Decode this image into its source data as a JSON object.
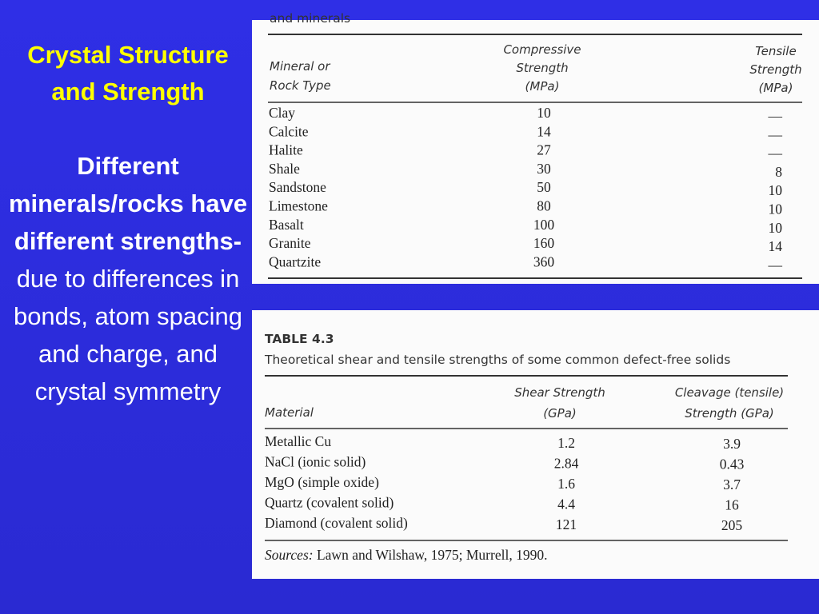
{
  "slide": {
    "title": "Crystal Structure and Strength",
    "body_bold": "Different minerals/rocks have different strengths-",
    "body_rest": " due to differences in bonds, atom spacing and charge, and crystal symmetry"
  },
  "table1": {
    "caption_fragment": "and minerals",
    "headers": [
      [
        "Mineral or",
        "Rock Type"
      ],
      [
        "Compressive",
        "Strength",
        "(MPa)"
      ],
      [
        "Tensile",
        "Strength",
        "(MPa)"
      ]
    ],
    "rows": [
      [
        "Clay",
        "10",
        "—"
      ],
      [
        "Calcite",
        "14",
        "—"
      ],
      [
        "Halite",
        "27",
        "—"
      ],
      [
        "Shale",
        "30",
        "8"
      ],
      [
        "Sandstone",
        "50",
        "10"
      ],
      [
        "Limestone",
        "80",
        "10"
      ],
      [
        "Basalt",
        "100",
        "10"
      ],
      [
        "Granite",
        "160",
        "14"
      ],
      [
        "Quartzite",
        "360",
        "—"
      ]
    ]
  },
  "table2": {
    "label": "TABLE 4.3",
    "caption": "Theoretical shear and tensile strengths of some common defect-free solids",
    "headers": [
      [
        "Material"
      ],
      [
        "Shear Strength",
        "(GPa)"
      ],
      [
        "Cleavage (tensile)",
        "Strength (GPa)"
      ]
    ],
    "rows": [
      [
        "Metallic Cu",
        "1.2",
        "3.9"
      ],
      [
        "NaCl (ionic solid)",
        "2.84",
        "0.43"
      ],
      [
        "MgO (simple oxide)",
        "1.6",
        "3.7"
      ],
      [
        "Quartz (covalent solid)",
        "4.4",
        "16"
      ],
      [
        "Diamond (covalent solid)",
        "121",
        "205"
      ]
    ],
    "sources_label": "Sources:",
    "sources": " Lawn and Wilshaw, 1975; Murrell, 1990."
  }
}
